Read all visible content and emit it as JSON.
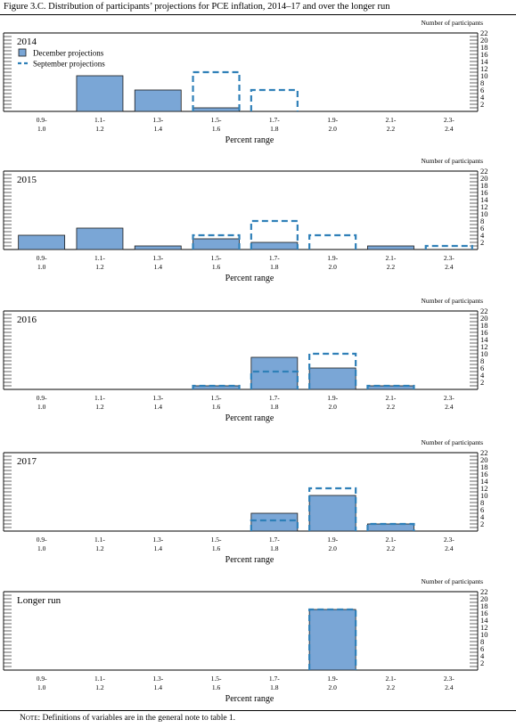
{
  "figure": {
    "title": "Figure 3.C. Distribution of participants’ projections for PCE inflation, 2014–17 and over the longer run",
    "note_label": "Note:",
    "note_text": " Definitions of variables are in the general note to table 1."
  },
  "legend": {
    "december": "December projections",
    "september": "September projections"
  },
  "colors": {
    "december_fill": "#7aa6d6",
    "december_stroke": "#1a1a1a",
    "september_stroke": "#2f80b8"
  },
  "chart_data": [
    {
      "type": "bar",
      "panel_label": "2014",
      "categories": [
        [
          "0.9-",
          "1.0"
        ],
        [
          "1.1-",
          "1.2"
        ],
        [
          "1.3-",
          "1.4"
        ],
        [
          "1.5-",
          "1.6"
        ],
        [
          "1.7-",
          "1.8"
        ],
        [
          "1.9-",
          "2.0"
        ],
        [
          "2.1-",
          "2.2"
        ],
        [
          "2.3-",
          "2.4"
        ]
      ],
      "series": [
        {
          "name": "December projections",
          "values": [
            0,
            10,
            6,
            1,
            0,
            0,
            0,
            0
          ]
        },
        {
          "name": "September projections",
          "values": [
            0,
            0,
            0,
            11,
            6,
            0,
            0,
            0
          ]
        }
      ],
      "xlabel": "Percent range",
      "ylabel": "Number of participants",
      "ylim": [
        0,
        22
      ],
      "yticks": [
        "2",
        "4",
        "6",
        "8",
        "10",
        "12",
        "14",
        "16",
        "18",
        "20",
        "22"
      ],
      "legend": "top-left"
    },
    {
      "type": "bar",
      "panel_label": "2015",
      "categories": [
        [
          "0.9-",
          "1.0"
        ],
        [
          "1.1-",
          "1.2"
        ],
        [
          "1.3-",
          "1.4"
        ],
        [
          "1.5-",
          "1.6"
        ],
        [
          "1.7-",
          "1.8"
        ],
        [
          "1.9-",
          "2.0"
        ],
        [
          "2.1-",
          "2.2"
        ],
        [
          "2.3-",
          "2.4"
        ]
      ],
      "series": [
        {
          "name": "December projections",
          "values": [
            4,
            6,
            1,
            3,
            2,
            0,
            1,
            0
          ]
        },
        {
          "name": "September projections",
          "values": [
            0,
            0,
            0,
            4,
            8,
            4,
            0,
            1
          ]
        }
      ],
      "xlabel": "Percent range",
      "ylabel": "Number of participants",
      "ylim": [
        0,
        22
      ],
      "yticks": [
        "2",
        "4",
        "6",
        "8",
        "10",
        "12",
        "14",
        "16",
        "18",
        "20",
        "22"
      ]
    },
    {
      "type": "bar",
      "panel_label": "2016",
      "categories": [
        [
          "0.9-",
          "1.0"
        ],
        [
          "1.1-",
          "1.2"
        ],
        [
          "1.3-",
          "1.4"
        ],
        [
          "1.5-",
          "1.6"
        ],
        [
          "1.7-",
          "1.8"
        ],
        [
          "1.9-",
          "2.0"
        ],
        [
          "2.1-",
          "2.2"
        ],
        [
          "2.3-",
          "2.4"
        ]
      ],
      "series": [
        {
          "name": "December projections",
          "values": [
            0,
            0,
            0,
            1,
            9,
            6,
            1,
            0
          ]
        },
        {
          "name": "September projections",
          "values": [
            0,
            0,
            0,
            1,
            5,
            10,
            1,
            0
          ]
        }
      ],
      "xlabel": "Percent range",
      "ylabel": "Number of participants",
      "ylim": [
        0,
        22
      ],
      "yticks": [
        "2",
        "4",
        "6",
        "8",
        "10",
        "12",
        "14",
        "16",
        "18",
        "20",
        "22"
      ]
    },
    {
      "type": "bar",
      "panel_label": "2017",
      "categories": [
        [
          "0.9-",
          "1.0"
        ],
        [
          "1.1-",
          "1.2"
        ],
        [
          "1.3-",
          "1.4"
        ],
        [
          "1.5-",
          "1.6"
        ],
        [
          "1.7-",
          "1.8"
        ],
        [
          "1.9-",
          "2.0"
        ],
        [
          "2.1-",
          "2.2"
        ],
        [
          "2.3-",
          "2.4"
        ]
      ],
      "series": [
        {
          "name": "December projections",
          "values": [
            0,
            0,
            0,
            0,
            5,
            10,
            2,
            0
          ]
        },
        {
          "name": "September projections",
          "values": [
            0,
            0,
            0,
            0,
            3,
            12,
            2,
            0
          ]
        }
      ],
      "xlabel": "Percent range",
      "ylabel": "Number of participants",
      "ylim": [
        0,
        22
      ],
      "yticks": [
        "2",
        "4",
        "6",
        "8",
        "10",
        "12",
        "14",
        "16",
        "18",
        "20",
        "22"
      ]
    },
    {
      "type": "bar",
      "panel_label": "Longer run",
      "categories": [
        [
          "0.9-",
          "1.0"
        ],
        [
          "1.1-",
          "1.2"
        ],
        [
          "1.3-",
          "1.4"
        ],
        [
          "1.5-",
          "1.6"
        ],
        [
          "1.7-",
          "1.8"
        ],
        [
          "1.9-",
          "2.0"
        ],
        [
          "2.1-",
          "2.2"
        ],
        [
          "2.3-",
          "2.4"
        ]
      ],
      "series": [
        {
          "name": "December projections",
          "values": [
            0,
            0,
            0,
            0,
            0,
            17,
            0,
            0
          ]
        },
        {
          "name": "September projections",
          "values": [
            0,
            0,
            0,
            0,
            0,
            17,
            0,
            0
          ]
        }
      ],
      "xlabel": "Percent range",
      "ylabel": "Number of participants",
      "ylim": [
        0,
        22
      ],
      "yticks": [
        "2",
        "4",
        "6",
        "8",
        "10",
        "12",
        "14",
        "16",
        "18",
        "20",
        "22"
      ]
    }
  ]
}
